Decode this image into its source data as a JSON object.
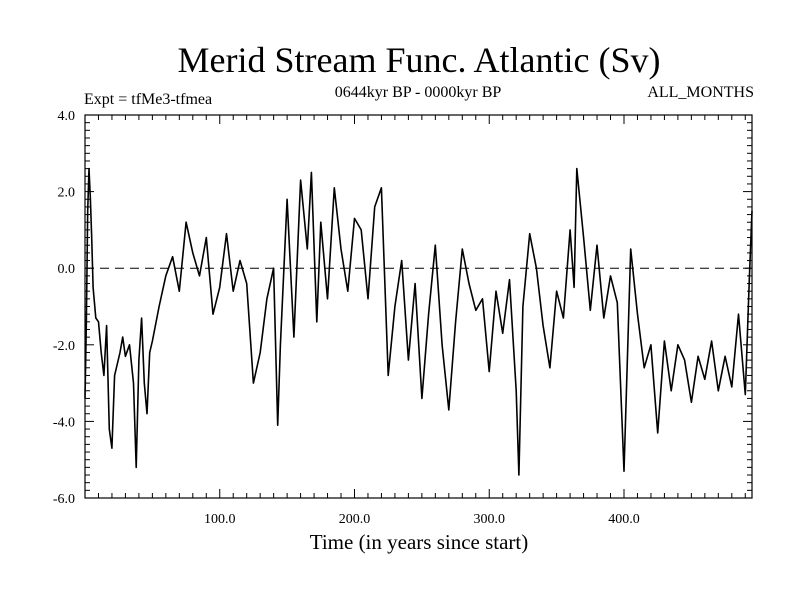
{
  "chart_data": {
    "type": "line",
    "title": "Merid Stream Func. Atlantic (Sv)",
    "subtitle_left": "Expt = tfMe3-tfmea",
    "subtitle_center": "0644kyr BP - 0000kyr BP",
    "subtitle_right": "ALL_MONTHS",
    "xlabel": "Time (in years since start)",
    "ylabel": "",
    "xlim": [
      0,
      495
    ],
    "ylim": [
      -6.0,
      4.0
    ],
    "x_ticks": [
      100,
      200,
      300,
      400
    ],
    "x_tick_labels": [
      "100.0",
      "200.0",
      "300.0",
      "400.0"
    ],
    "y_ticks": [
      -6,
      -4,
      -2,
      0,
      2,
      4
    ],
    "y_tick_labels": [
      "-6.0",
      "-4.0",
      "-2.0",
      "0.0",
      "2.0",
      "4.0"
    ],
    "reference_line": {
      "y": 0.0,
      "style": "dashed"
    },
    "grid": false,
    "line_color": "#000000",
    "series": [
      {
        "x": [
          0,
          1,
          2,
          3,
          4,
          5,
          6,
          8,
          10,
          12,
          14,
          16,
          18,
          20,
          22,
          24,
          26,
          28,
          30,
          33,
          36,
          38,
          40,
          42,
          44,
          46,
          48,
          50,
          55,
          60,
          65,
          70,
          75,
          80,
          85,
          90,
          95,
          100,
          105,
          110,
          115,
          120,
          125,
          130,
          135,
          140,
          143,
          145,
          150,
          155,
          160,
          165,
          168,
          172,
          175,
          180,
          185,
          190,
          195,
          200,
          205,
          210,
          215,
          220,
          225,
          230,
          235,
          240,
          245,
          250,
          255,
          260,
          265,
          270,
          275,
          280,
          285,
          290,
          295,
          300,
          305,
          310,
          315,
          320,
          322,
          325,
          330,
          335,
          340,
          345,
          350,
          355,
          360,
          363,
          365,
          370,
          375,
          380,
          385,
          390,
          395,
          400,
          405,
          410,
          415,
          420,
          425,
          430,
          435,
          440,
          445,
          450,
          455,
          460,
          465,
          470,
          475,
          480,
          485,
          490,
          493,
          495
        ],
        "values": [
          -3.4,
          -1.5,
          1.5,
          2.6,
          1.8,
          0.8,
          -0.5,
          -1.3,
          -1.4,
          -2.2,
          -2.8,
          -1.5,
          -4.2,
          -4.7,
          -2.8,
          -2.5,
          -2.2,
          -1.8,
          -2.3,
          -2.0,
          -3.0,
          -5.2,
          -2.4,
          -1.3,
          -3.0,
          -3.8,
          -2.2,
          -1.9,
          -1.0,
          -0.2,
          0.3,
          -0.6,
          1.2,
          0.4,
          -0.2,
          0.8,
          -1.2,
          -0.5,
          0.9,
          -0.6,
          0.2,
          -0.4,
          -3.0,
          -2.2,
          -0.8,
          0.0,
          -4.1,
          -2.0,
          1.8,
          -1.8,
          2.3,
          0.5,
          2.5,
          -1.4,
          1.2,
          -0.8,
          2.1,
          0.5,
          -0.6,
          1.3,
          1.0,
          -0.8,
          1.6,
          2.1,
          -2.8,
          -1.0,
          0.2,
          -2.4,
          -0.4,
          -3.4,
          -1.2,
          0.6,
          -2.0,
          -3.7,
          -1.4,
          0.5,
          -0.4,
          -1.1,
          -0.8,
          -2.7,
          -0.6,
          -1.7,
          -0.3,
          -3.2,
          -5.4,
          -1.0,
          0.9,
          0.0,
          -1.5,
          -2.6,
          -0.6,
          -1.3,
          1.0,
          -0.5,
          2.6,
          0.8,
          -1.1,
          0.6,
          -1.3,
          -0.2,
          -0.9,
          -5.3,
          0.5,
          -1.2,
          -2.6,
          -2.0,
          -4.3,
          -1.9,
          -3.2,
          -2.0,
          -2.4,
          -3.5,
          -2.3,
          -2.9,
          -1.9,
          -3.2,
          -2.3,
          -3.1,
          -1.2,
          -3.3,
          -0.3,
          1.5
        ],
        "sample_note": ""
      }
    ]
  }
}
